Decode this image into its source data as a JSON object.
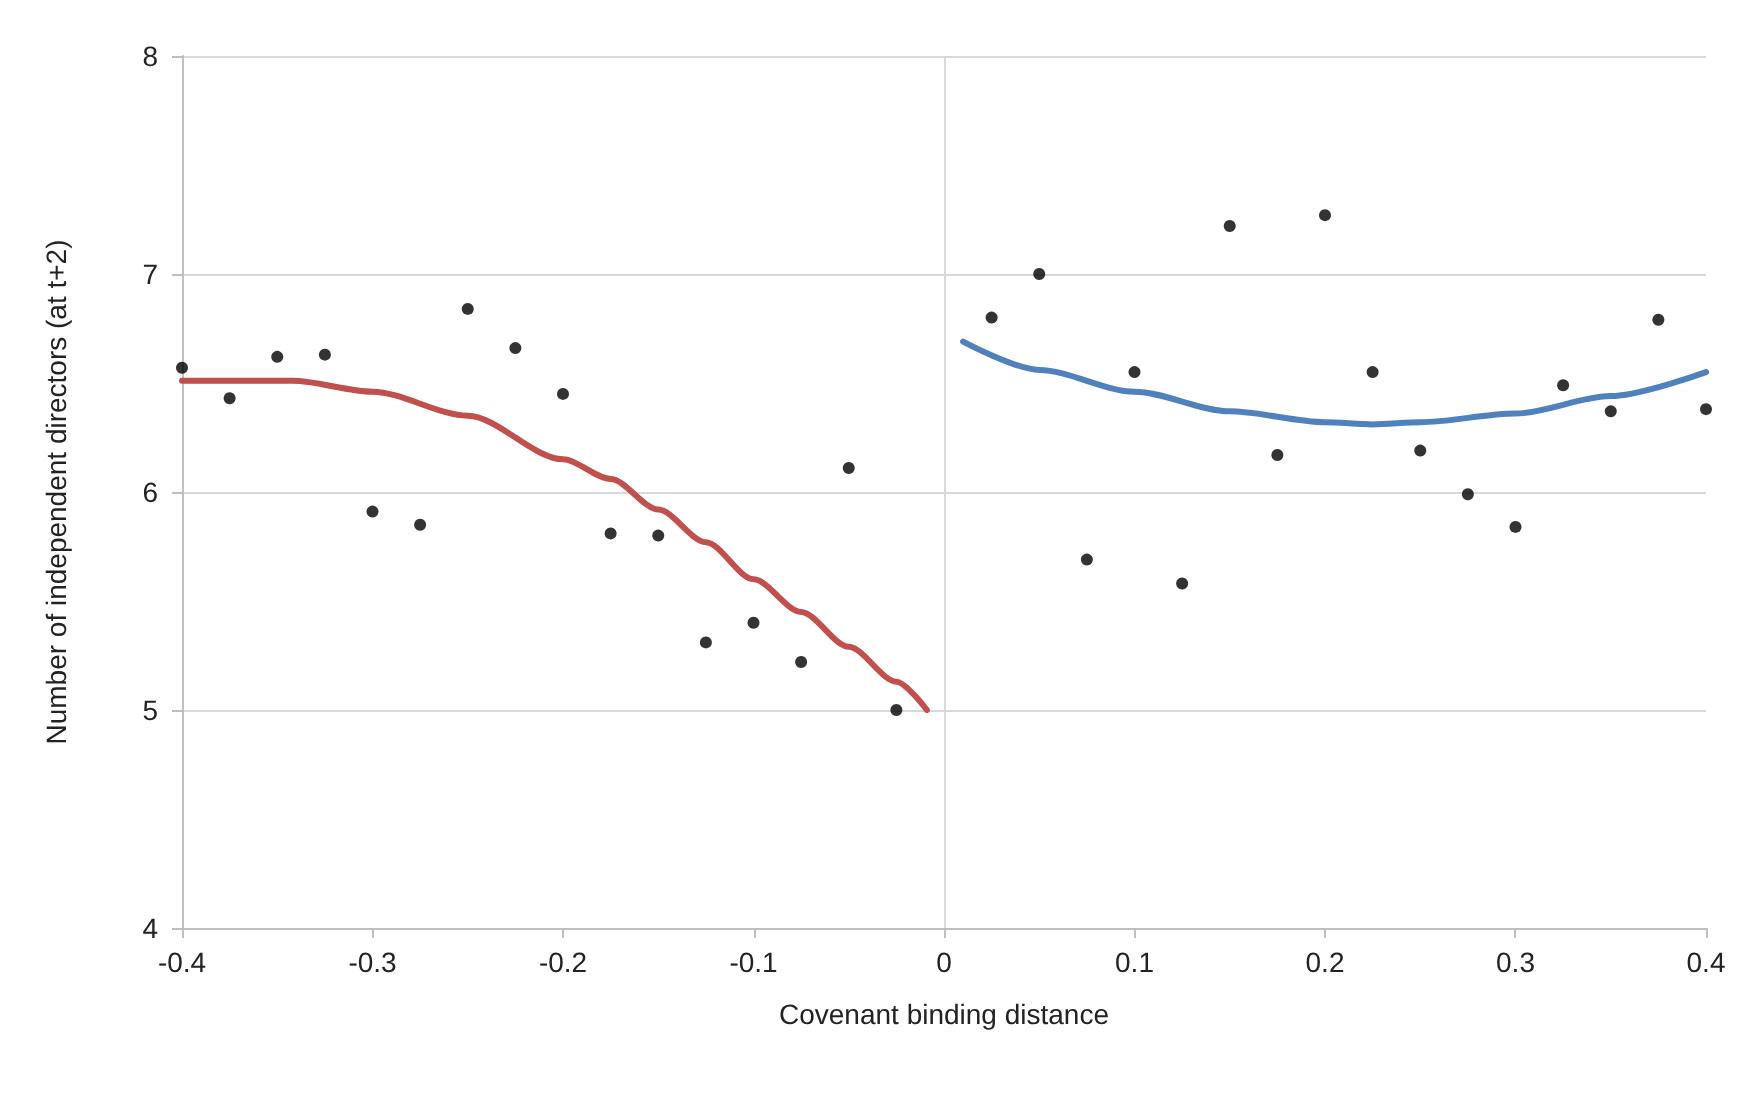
{
  "chart_data": {
    "type": "scatter",
    "xlabel": "Covenant binding distance",
    "ylabel": "Number of independent directors (at t+2)",
    "xlim": [
      -0.4,
      0.4
    ],
    "xticks": [
      -0.4,
      -0.3,
      -0.2,
      -0.1,
      0,
      0.1,
      0.2,
      0.3,
      0.4
    ],
    "ylim": [
      4,
      8
    ],
    "yticks": [
      4,
      5,
      6,
      7,
      8
    ],
    "grid": "y",
    "marker": "circle",
    "ref_lines": [
      {
        "axis": "x",
        "value": 0,
        "color": "#d9d9d9"
      }
    ],
    "series": [
      {
        "color": "#000000",
        "x": [
          -0.4,
          -0.375,
          -0.35,
          -0.325,
          -0.3,
          -0.275,
          -0.25,
          -0.225,
          -0.2,
          -0.175,
          -0.15,
          -0.125,
          -0.1,
          -0.075,
          -0.05,
          -0.025,
          0.025,
          0.05,
          0.075,
          0.1,
          0.125,
          0.15,
          0.175,
          0.2,
          0.225,
          0.25,
          0.275,
          0.3,
          0.325,
          0.35,
          0.375,
          0.4
        ],
        "values": [
          6.57,
          6.43,
          6.62,
          6.63,
          5.91,
          5.85,
          6.84,
          6.66,
          6.45,
          5.81,
          5.8,
          5.31,
          5.4,
          5.22,
          6.11,
          5.0,
          6.8,
          7.0,
          5.69,
          6.55,
          5.58,
          7.22,
          6.17,
          7.27,
          6.55,
          6.19,
          5.99,
          5.84,
          6.49,
          6.37,
          6.79,
          6.38
        ]
      },
      {
        "type": "line",
        "color": "#c0504d",
        "marker": "none",
        "x": [
          -0.4,
          -0.342,
          -0.3,
          -0.25,
          -0.2,
          -0.175,
          -0.15,
          -0.125,
          -0.1,
          -0.075,
          -0.05,
          -0.025,
          -0.009
        ],
        "values": [
          6.51,
          6.51,
          6.46,
          6.35,
          6.15,
          6.06,
          5.92,
          5.77,
          5.6,
          5.45,
          5.29,
          5.13,
          5.0
        ]
      },
      {
        "type": "line",
        "color": "#4f81bd",
        "marker": "none",
        "x": [
          0.01,
          0.05,
          0.1,
          0.15,
          0.2,
          0.225,
          0.25,
          0.3,
          0.35,
          0.4
        ],
        "values": [
          6.69,
          6.56,
          6.46,
          6.37,
          6.32,
          6.31,
          6.32,
          6.36,
          6.44,
          6.55
        ]
      }
    ]
  }
}
